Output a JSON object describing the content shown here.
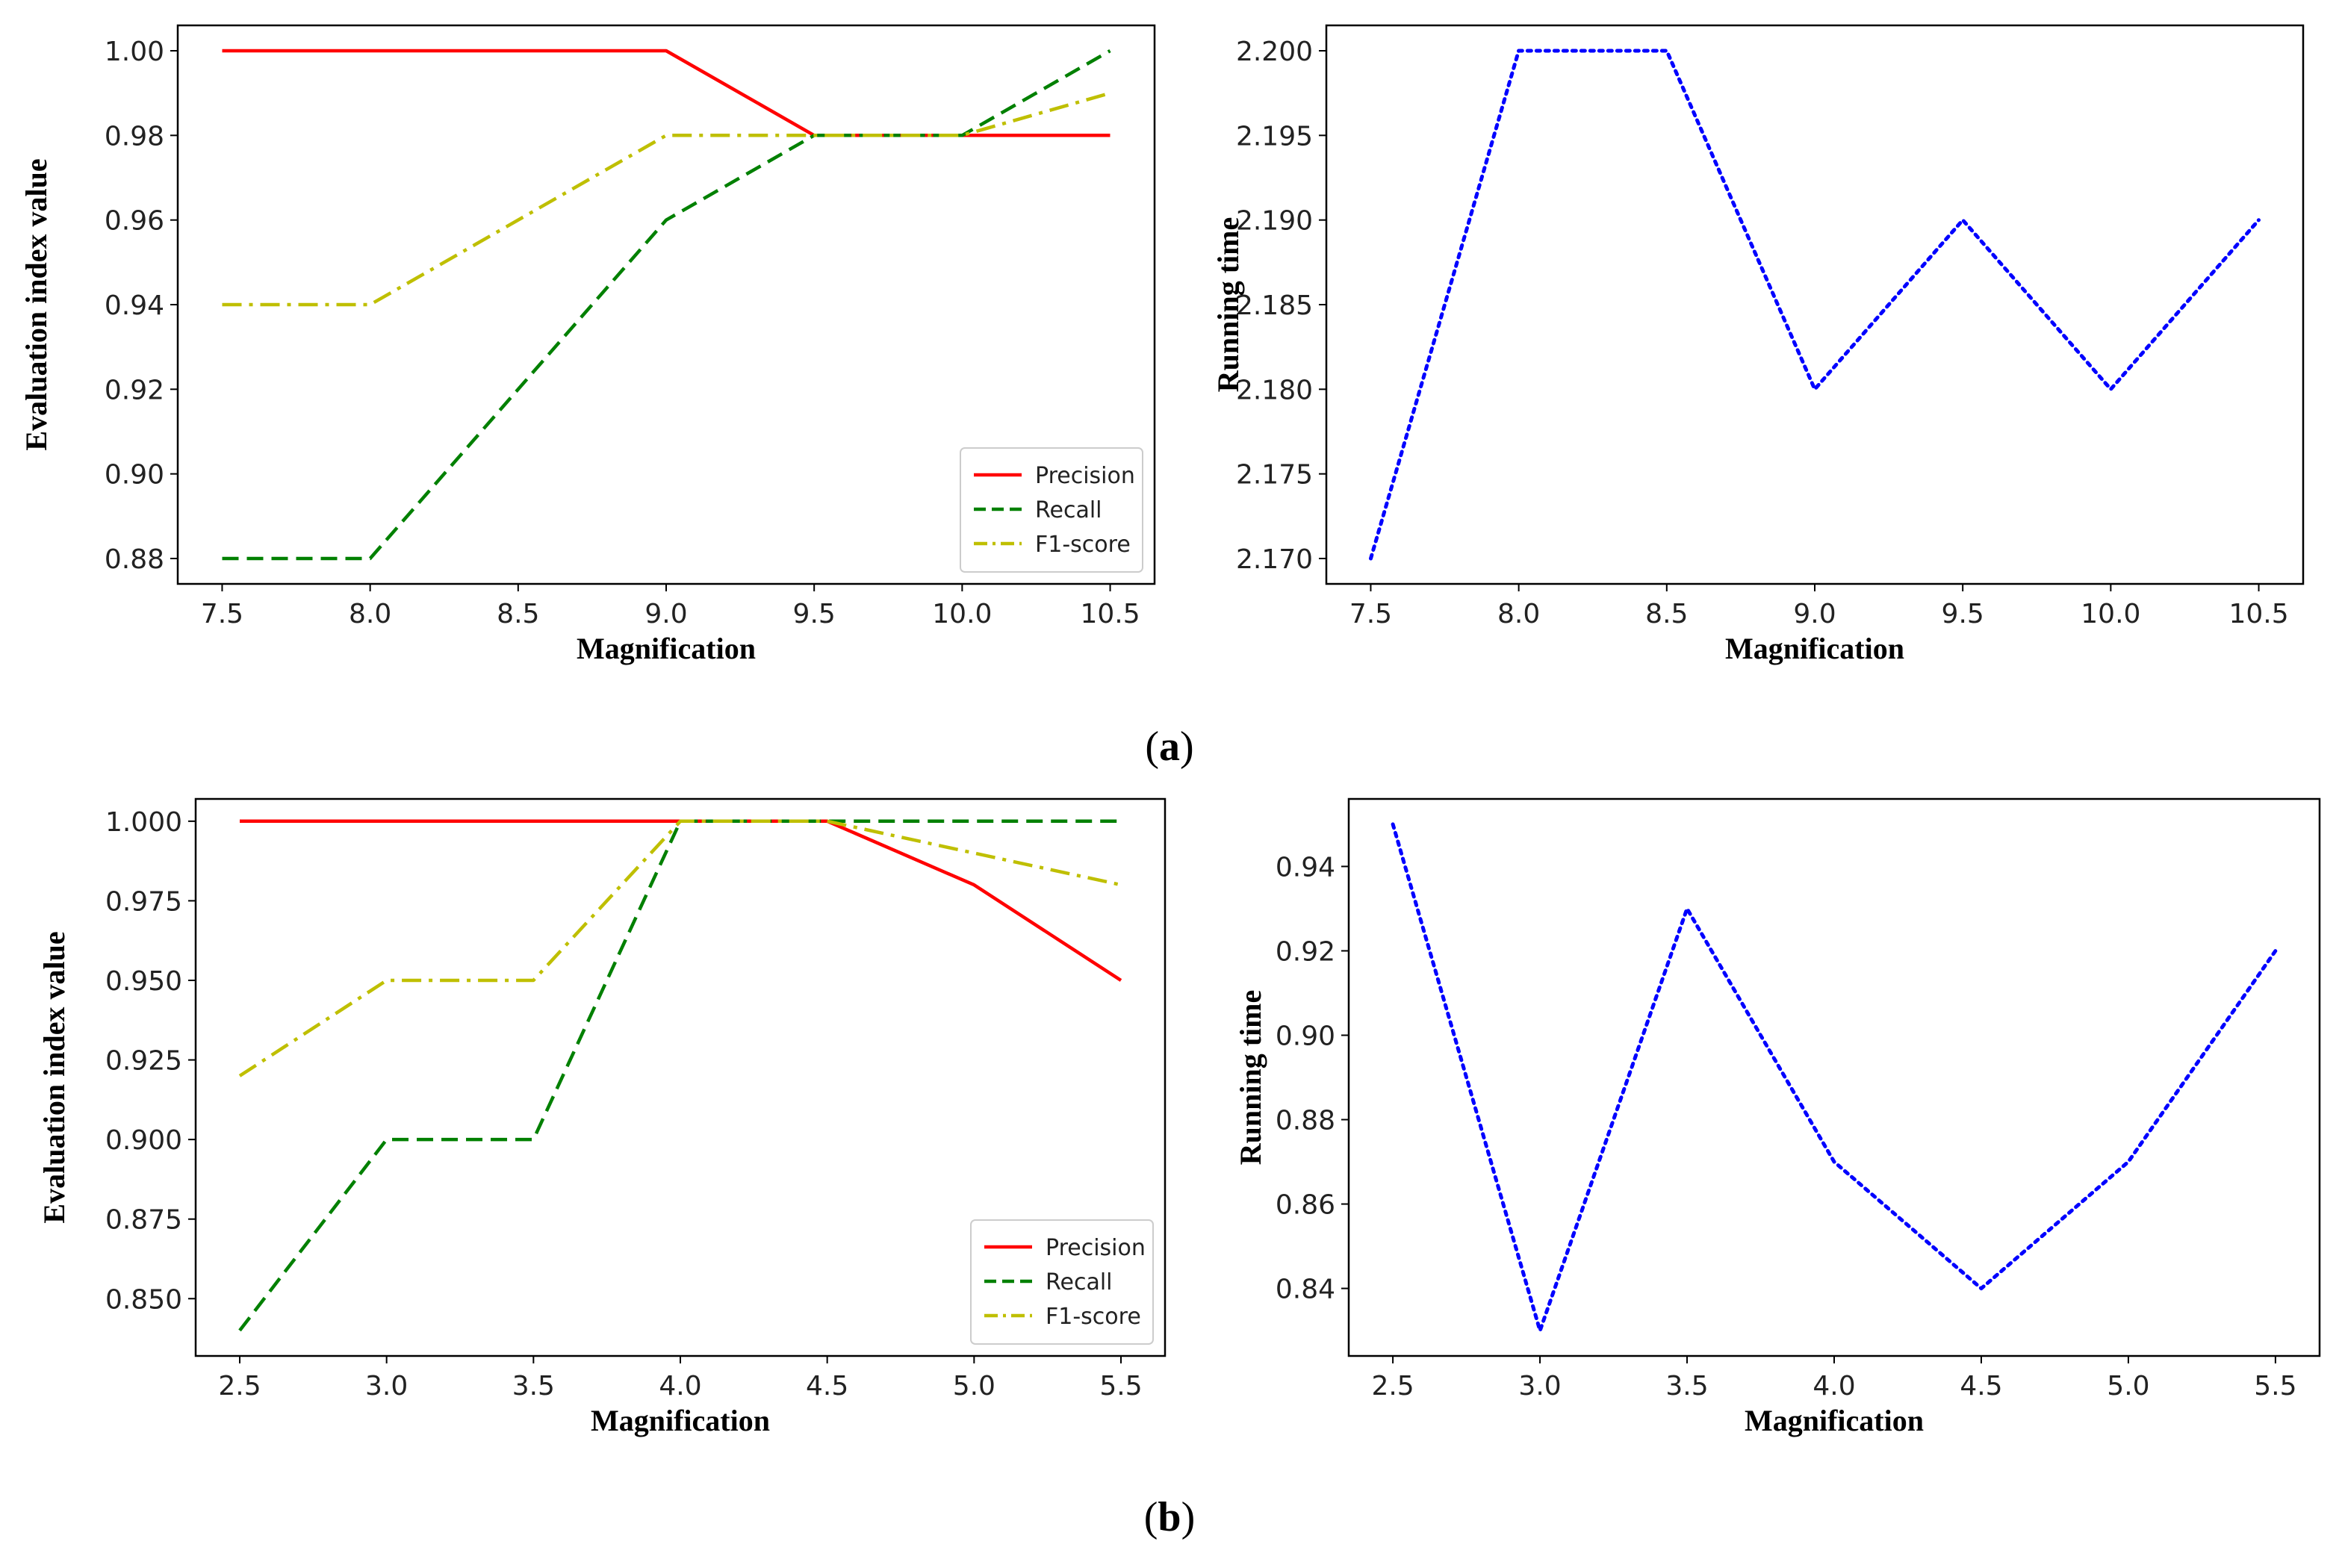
{
  "panel_labels": [
    {
      "pre": "(",
      "letter": "a",
      "post": ")"
    },
    {
      "pre": "(",
      "letter": "b",
      "post": ")"
    }
  ],
  "colors": {
    "precision": "#ff0000",
    "recall": "#008000",
    "f1": "#bfbf00",
    "running_time": "#0000ff",
    "axes": "#000000"
  },
  "chart_data": [
    {
      "id": "a-left",
      "type": "line",
      "title": "",
      "xlabel": "Magnification",
      "ylabel": "Evaluation index value",
      "x": [
        7.5,
        8.0,
        9.0,
        9.5,
        10.0,
        10.5
      ],
      "xlim": [
        7.35,
        10.65
      ],
      "ylim": [
        0.874,
        1.006
      ],
      "xticks": [
        7.5,
        8.0,
        8.5,
        9.0,
        9.5,
        10.0,
        10.5
      ],
      "xtick_labels": [
        "7.5",
        "8.0",
        "8.5",
        "9.0",
        "9.5",
        "10.0",
        "10.5"
      ],
      "yticks": [
        0.88,
        0.9,
        0.92,
        0.94,
        0.96,
        0.98,
        1.0
      ],
      "ytick_labels": [
        "0.88",
        "0.90",
        "0.92",
        "0.94",
        "0.96",
        "0.98",
        "1.00"
      ],
      "legend": "lower-right",
      "series": [
        {
          "name": "Precision",
          "style": "solid",
          "values": [
            1.0,
            1.0,
            1.0,
            0.98,
            0.98,
            0.98
          ]
        },
        {
          "name": "Recall",
          "style": "dashed",
          "values": [
            0.88,
            0.88,
            0.96,
            0.98,
            0.98,
            1.0
          ]
        },
        {
          "name": "F1-score",
          "style": "dashdot",
          "values": [
            0.94,
            0.94,
            0.98,
            0.98,
            0.98,
            0.99
          ]
        }
      ]
    },
    {
      "id": "a-right",
      "type": "line",
      "title": "",
      "xlabel": "Magnification",
      "ylabel": "Running time",
      "x": [
        7.5,
        8.0,
        8.5,
        9.0,
        9.5,
        10.0,
        10.5
      ],
      "xlim": [
        7.35,
        10.65
      ],
      "ylim": [
        2.1685,
        2.2015
      ],
      "xticks": [
        7.5,
        8.0,
        8.5,
        9.0,
        9.5,
        10.0,
        10.5
      ],
      "xtick_labels": [
        "7.5",
        "8.0",
        "8.5",
        "9.0",
        "9.5",
        "10.0",
        "10.5"
      ],
      "yticks": [
        2.17,
        2.175,
        2.18,
        2.185,
        2.19,
        2.195,
        2.2
      ],
      "ytick_labels": [
        "2.170",
        "2.175",
        "2.180",
        "2.185",
        "2.190",
        "2.195",
        "2.200"
      ],
      "legend": "none",
      "series": [
        {
          "name": "Running time",
          "style": "dotted",
          "values": [
            2.17,
            2.2,
            2.2,
            2.18,
            2.19,
            2.18,
            2.19
          ]
        }
      ]
    },
    {
      "id": "b-left",
      "type": "line",
      "title": "",
      "xlabel": "Magnification",
      "ylabel": "Evaluation index value",
      "x": [
        2.5,
        3.0,
        3.5,
        4.0,
        4.5,
        5.0,
        5.5
      ],
      "xlim": [
        2.35,
        5.65
      ],
      "ylim": [
        0.832,
        1.007
      ],
      "xticks": [
        2.5,
        3.0,
        3.5,
        4.0,
        4.5,
        5.0,
        5.5
      ],
      "xtick_labels": [
        "2.5",
        "3.0",
        "3.5",
        "4.0",
        "4.5",
        "5.0",
        "5.5"
      ],
      "yticks": [
        0.85,
        0.875,
        0.9,
        0.925,
        0.95,
        0.975,
        1.0
      ],
      "ytick_labels": [
        "0.850",
        "0.875",
        "0.900",
        "0.925",
        "0.950",
        "0.975",
        "1.000"
      ],
      "legend": "lower-right",
      "series": [
        {
          "name": "Precision",
          "style": "solid",
          "values": [
            1.0,
            1.0,
            1.0,
            1.0,
            1.0,
            0.98,
            0.95
          ]
        },
        {
          "name": "Recall",
          "style": "dashed",
          "values": [
            0.84,
            0.9,
            0.9,
            1.0,
            1.0,
            1.0,
            1.0
          ]
        },
        {
          "name": "F1-score",
          "style": "dashdot",
          "values": [
            0.92,
            0.95,
            0.95,
            1.0,
            1.0,
            0.99,
            0.98
          ]
        }
      ]
    },
    {
      "id": "b-right",
      "type": "line",
      "title": "",
      "xlabel": "Magnification",
      "ylabel": "Running time",
      "x": [
        2.5,
        3.0,
        3.5,
        4.0,
        4.5,
        5.0,
        5.5
      ],
      "xlim": [
        2.35,
        5.65
      ],
      "ylim": [
        0.824,
        0.956
      ],
      "xticks": [
        2.5,
        3.0,
        3.5,
        4.0,
        4.5,
        5.0,
        5.5
      ],
      "xtick_labels": [
        "2.5",
        "3.0",
        "3.5",
        "4.0",
        "4.5",
        "5.0",
        "5.5"
      ],
      "yticks": [
        0.84,
        0.86,
        0.88,
        0.9,
        0.92,
        0.94
      ],
      "ytick_labels": [
        "0.84",
        "0.86",
        "0.88",
        "0.90",
        "0.92",
        "0.94"
      ],
      "legend": "none",
      "series": [
        {
          "name": "Running time",
          "style": "dotted",
          "values": [
            0.95,
            0.83,
            0.93,
            0.87,
            0.84,
            0.87,
            0.92
          ]
        }
      ]
    }
  ]
}
